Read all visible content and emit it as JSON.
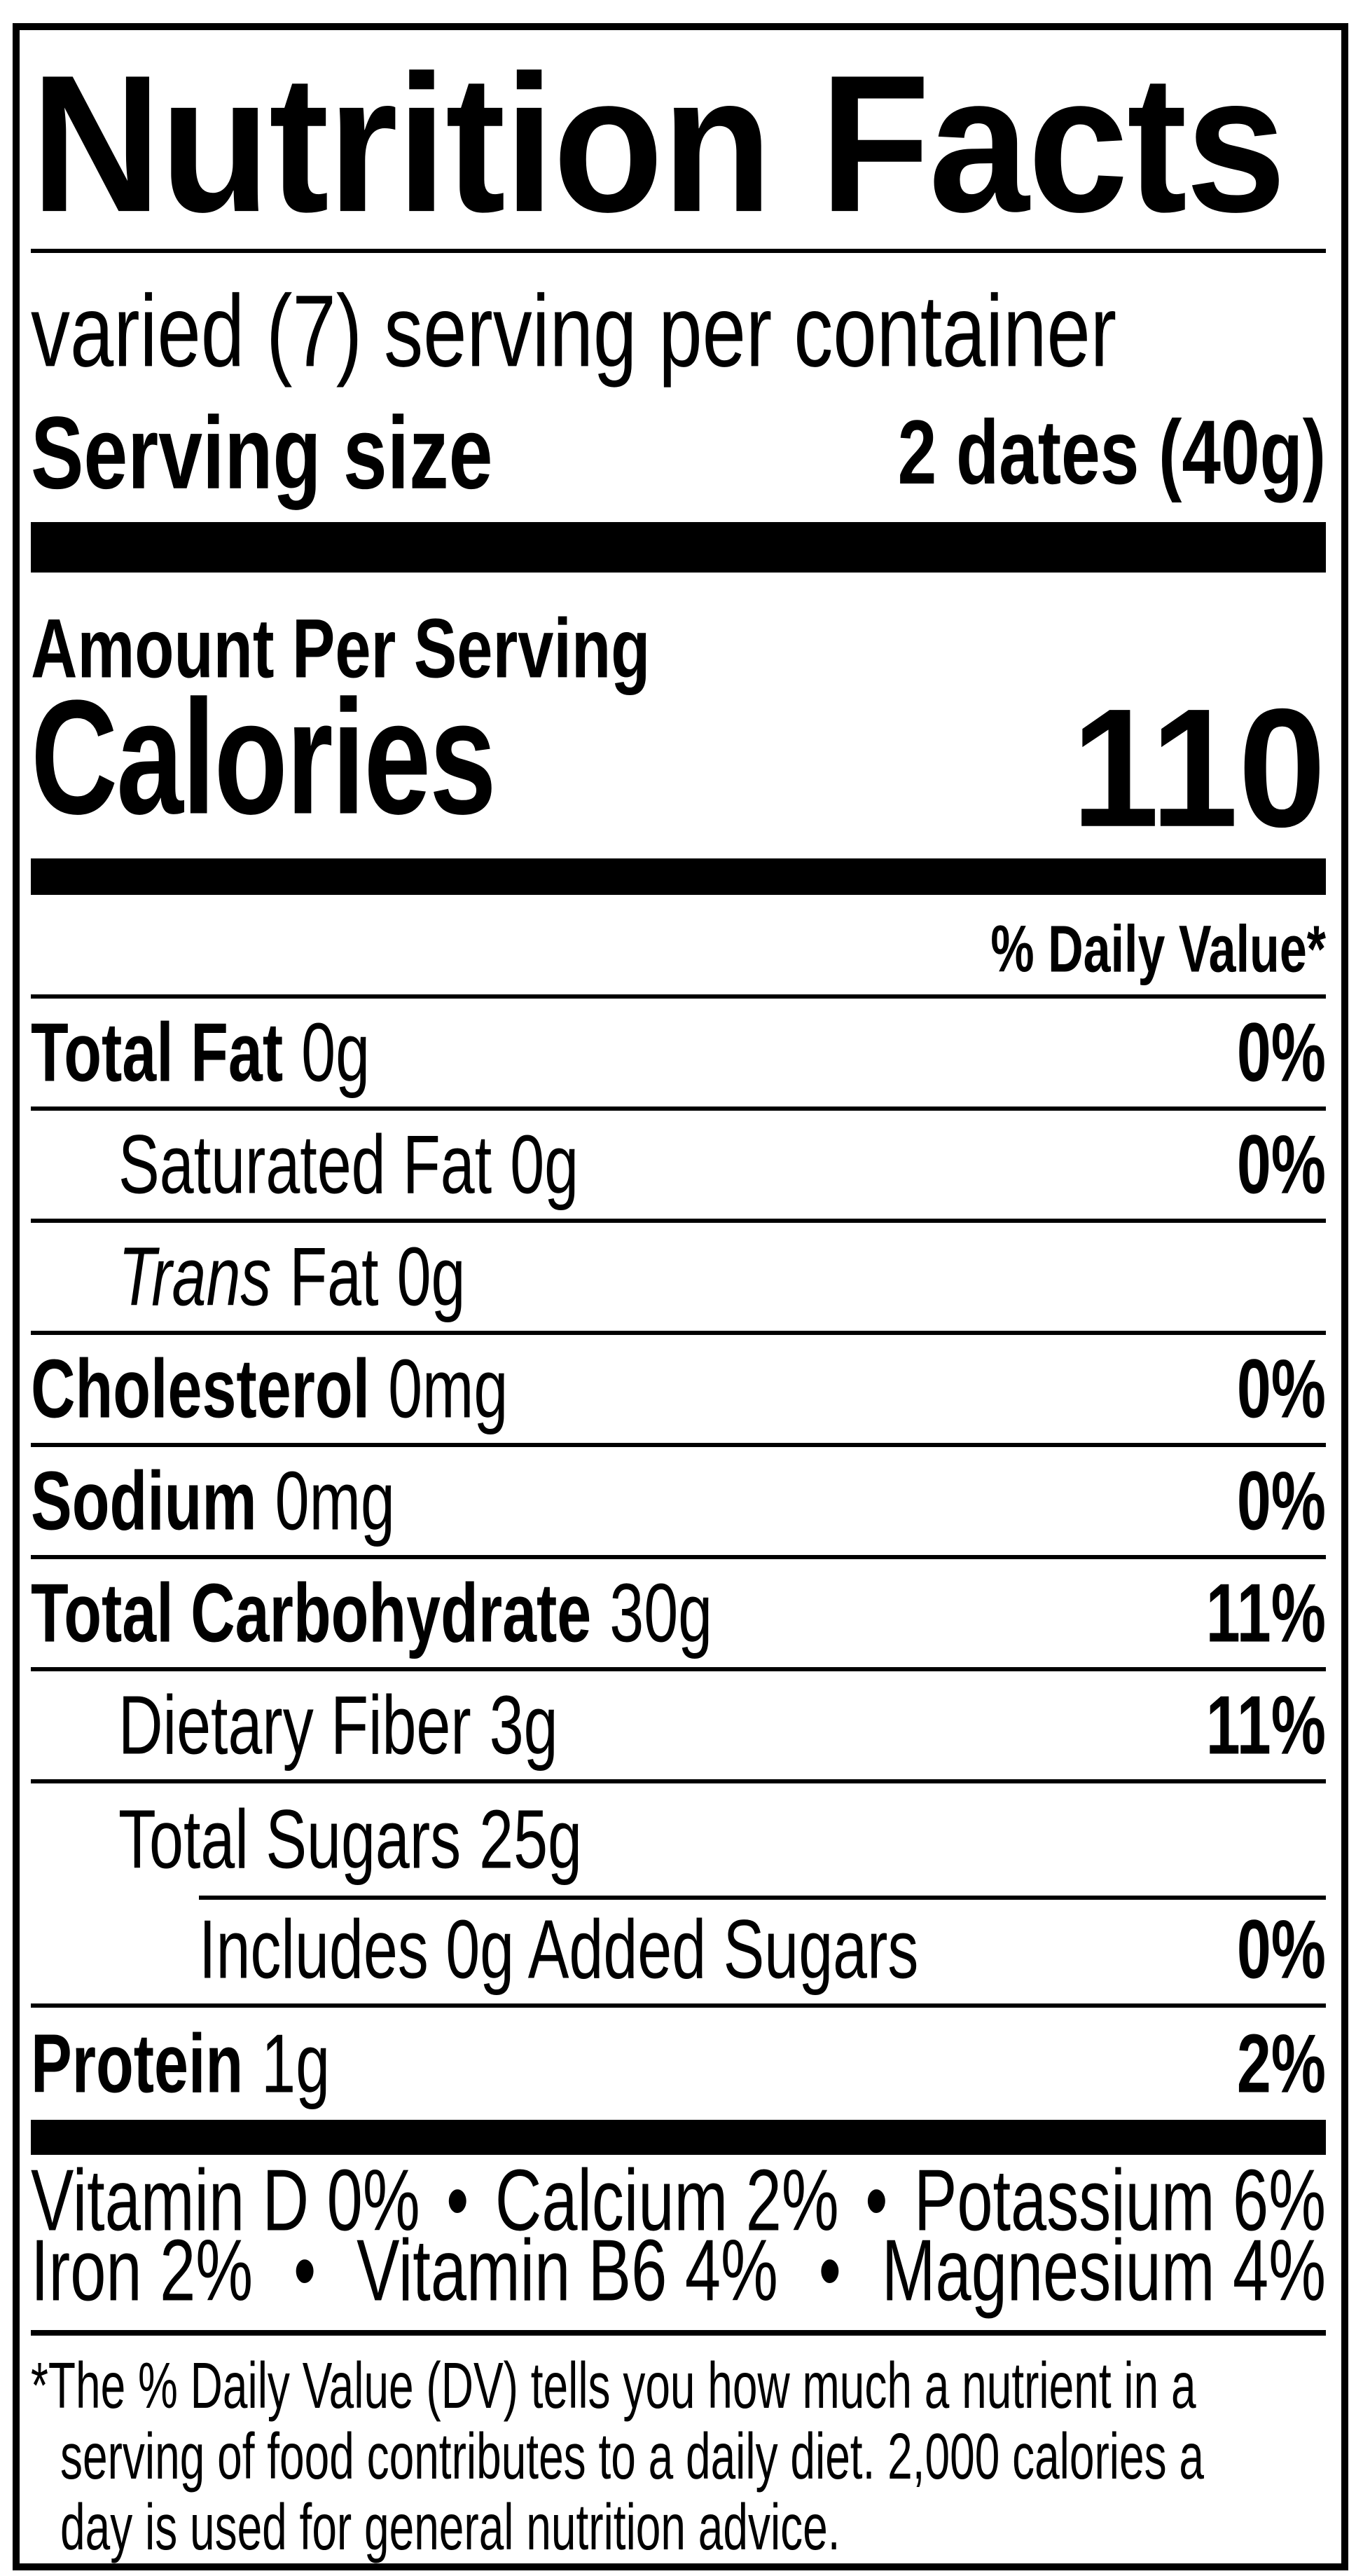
{
  "label": {
    "title": "Nutrition Facts",
    "servings_per_container": "varied (7) serving per container",
    "serving_size": {
      "label": "Serving size",
      "value": "2 dates (40g)"
    },
    "amount_per_serving": "Amount Per Serving",
    "calories": {
      "label": "Calories",
      "value": "110"
    },
    "daily_value_header": "% Daily Value*",
    "nutrients": [
      {
        "name": "Total Fat",
        "amount": "0g",
        "daily_value": "0%"
      },
      {
        "name": "Saturated Fat",
        "amount": "0g",
        "daily_value": "0%"
      },
      {
        "name_italic": "Trans",
        "name": "Fat",
        "amount": "0g",
        "daily_value": ""
      },
      {
        "name": "Cholesterol",
        "amount": "0mg",
        "daily_value": "0%"
      },
      {
        "name": "Sodium",
        "amount": "0mg",
        "daily_value": "0%"
      },
      {
        "name": "Total Carbohydrate",
        "amount": "30g",
        "daily_value": "11%"
      },
      {
        "name": "Dietary Fiber",
        "amount": "3g",
        "daily_value": "11%"
      },
      {
        "name": "Total Sugars",
        "amount": "25g",
        "daily_value": ""
      },
      {
        "name": "Includes 0g Added Sugars",
        "amount": "",
        "daily_value": "0%"
      },
      {
        "name": "Protein",
        "amount": "1g",
        "daily_value": "2%"
      }
    ],
    "micronutrients": {
      "separator": "•",
      "line1": [
        "Vitamin D 0%",
        "Calcium 2%",
        "Potassium 6%"
      ],
      "line2": [
        "Iron 2%",
        "Vitamin B6 4%",
        "Magnesium 4%"
      ]
    },
    "footnote_lines": [
      "*The % Daily Value (DV) tells you how much a nutrient in a",
      "serving of food contributes to a daily diet. 2,000 calories a",
      "day is used for general nutrition advice."
    ],
    "colors": {
      "ink": "#000000",
      "paper": "#ffffff"
    }
  }
}
